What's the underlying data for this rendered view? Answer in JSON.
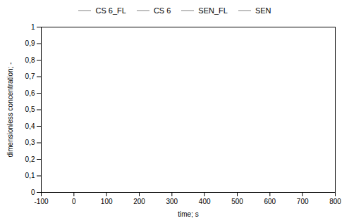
{
  "chart_data": {
    "type": "line",
    "title": "",
    "xlabel": "time; s",
    "ylabel": "dimensionless concentration; -",
    "x": [],
    "series": [
      {
        "name": "CS 6_FL",
        "color": "#c0c0c0",
        "values": []
      },
      {
        "name": "CS 6",
        "color": "#c0c0c0",
        "values": []
      },
      {
        "name": "SEN_FL",
        "color": "#c0c0c0",
        "values": []
      },
      {
        "name": "SEN",
        "color": "#c0c0c0",
        "values": []
      }
    ],
    "xlim": [
      -100,
      800
    ],
    "ylim": [
      0,
      1
    ],
    "xticks": [
      -100,
      0,
      100,
      200,
      300,
      400,
      500,
      600,
      700,
      800
    ],
    "yticks": [
      0,
      {
        "value": 0.1,
        "label": "0,1"
      },
      {
        "value": 0.2,
        "label": "0,2"
      },
      {
        "value": 0.3,
        "label": "0,3"
      },
      {
        "value": 0.4,
        "label": "0,4"
      },
      {
        "value": 0.5,
        "label": "0,5"
      },
      {
        "value": 0.6,
        "label": "0,6"
      },
      {
        "value": 0.7,
        "label": "0,7"
      },
      {
        "value": 0.8,
        "label": "0,8"
      },
      {
        "value": 0.9,
        "label": "0,9"
      },
      1
    ],
    "grid": false,
    "legend": "top"
  }
}
